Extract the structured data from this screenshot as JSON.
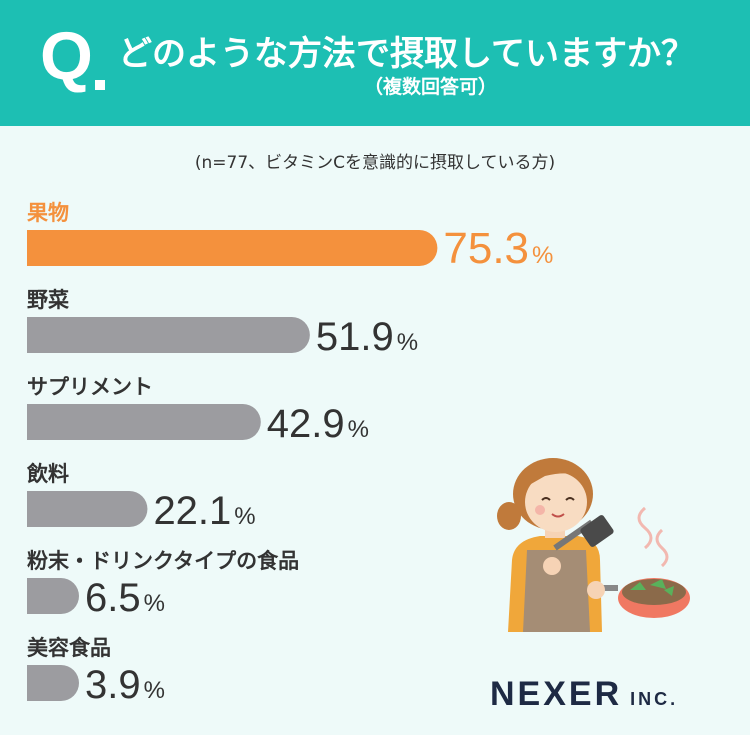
{
  "header": {
    "q_label": "Q",
    "title": "どのような方法で摂取していますか？",
    "subtitle": "（複数回答可）",
    "bg_color": "#1dbfb3"
  },
  "note": "(n=77、ビタミンCを意識的に摂取している方)",
  "chart_data": {
    "type": "bar",
    "orientation": "horizontal",
    "title": "どのような方法で摂取していますか？",
    "subtitle": "（複数回答可）",
    "categories": [
      "果物",
      "野菜",
      "サプリメント",
      "飲料",
      "粉末・ドリンクタイプの食品",
      "美容食品"
    ],
    "values": [
      75.3,
      51.9,
      42.9,
      22.1,
      6.5,
      3.9
    ],
    "unit": "%",
    "highlight_index": 0,
    "highlight_color": "#f4913d",
    "bar_color": "#9c9ca0",
    "xlim": [
      0,
      100
    ],
    "grid": false
  },
  "illustration": {
    "name": "woman-cooking-illustration"
  },
  "logo": {
    "main": "NEXER",
    "suffix": "INC."
  }
}
